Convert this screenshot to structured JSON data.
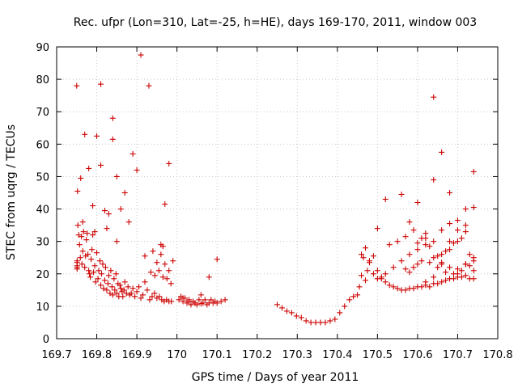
{
  "chart_data": {
    "type": "scatter",
    "title": "Rec. ufpr (Lon=310, Lat=-25, h=HE), days 169-170, 2011, window 003",
    "xlabel": "GPS time / Days of year 2011",
    "ylabel": "STEC from uqrg / TECUs",
    "xlim": [
      169.7,
      170.8
    ],
    "ylim": [
      0,
      90
    ],
    "xticks": [
      "169.7",
      "169.8",
      "169.9",
      "170",
      "170.1",
      "170.2",
      "170.3",
      "170.4",
      "170.5",
      "170.6",
      "170.7",
      "170.8"
    ],
    "yticks": [
      "0",
      "10",
      "20",
      "30",
      "40",
      "50",
      "60",
      "70",
      "80",
      "90"
    ],
    "grid": true,
    "legend": "none",
    "marker": "plus",
    "color": "#cc0000",
    "series": [
      {
        "x": [
          169.751,
          169.751,
          169.751,
          169.751,
          169.751,
          169.752,
          169.753,
          169.755,
          169.757,
          169.759,
          169.762,
          169.763,
          169.765,
          169.767,
          169.77,
          169.772,
          169.774,
          169.776,
          169.778,
          169.78,
          169.782,
          169.784,
          169.786,
          169.788,
          169.79,
          169.792,
          169.795,
          169.797,
          169.8,
          169.803,
          169.805,
          169.808,
          169.81,
          169.812,
          169.815,
          169.817,
          169.82,
          169.822,
          169.825,
          169.828,
          169.83,
          169.833,
          169.835,
          169.838,
          169.84,
          169.843,
          169.845,
          169.848,
          169.85,
          169.853,
          169.855,
          169.858,
          169.86,
          169.863,
          169.865,
          169.868,
          169.87,
          169.874,
          169.878,
          169.882,
          169.886,
          169.89,
          169.895,
          169.9,
          169.905,
          169.91,
          169.915,
          169.92,
          169.926,
          169.932,
          169.938,
          169.944,
          169.95,
          169.956,
          169.962,
          169.968,
          169.974,
          169.98,
          169.986,
          169.8,
          169.87,
          169.84,
          169.77,
          169.81,
          169.91,
          169.75,
          169.76,
          169.79,
          169.82,
          169.83,
          169.86,
          169.89,
          169.9,
          169.94,
          169.96,
          169.97,
          169.98,
          169.99,
          169.85,
          169.88,
          169.93,
          169.95,
          169.92,
          169.935,
          169.945,
          169.955,
          169.965,
          169.975,
          169.985,
          169.78,
          169.81,
          169.84,
          169.765,
          169.795,
          169.825,
          169.85,
          169.96,
          169.965,
          169.97,
          169.98
        ],
        "y": [
          23.5,
          24.0,
          22.5,
          22.0,
          21.5,
          45.5,
          35.0,
          32.0,
          29.0,
          25.0,
          31.5,
          23.0,
          27.0,
          33.0,
          22.0,
          25.5,
          30.5,
          32.5,
          26.0,
          21.0,
          20.0,
          19.0,
          24.5,
          27.5,
          32.0,
          20.5,
          22.5,
          17.5,
          26.5,
          18.5,
          21.0,
          24.0,
          16.5,
          20.0,
          23.0,
          15.5,
          18.0,
          22.0,
          15.0,
          17.0,
          19.5,
          14.0,
          21.0,
          16.0,
          13.5,
          18.5,
          15.0,
          20.0,
          14.0,
          17.0,
          13.0,
          16.5,
          15.5,
          14.5,
          13.0,
          15.0,
          17.5,
          14.0,
          16.0,
          13.5,
          14.0,
          15.5,
          13.0,
          14.5,
          16.0,
          12.5,
          13.5,
          17.5,
          15.0,
          12.0,
          13.0,
          14.0,
          12.5,
          13.0,
          12.0,
          11.5,
          12.0,
          11.5,
          11.5,
          62.5,
          45.0,
          68.0,
          63.0,
          78.5,
          87.5,
          78.0,
          49.5,
          41.0,
          39.5,
          38.5,
          40.0,
          57.0,
          52.0,
          27.0,
          29.0,
          41.5,
          54.0,
          24.0,
          50.0,
          36.0,
          78.0,
          23.5,
          25.5,
          20.5,
          19.5,
          21.0,
          19.0,
          18.5,
          17.0,
          52.5,
          53.5,
          61.5,
          36.0,
          33.0,
          34.0,
          30.0,
          26.0,
          28.5,
          23.0,
          21.0
        ]
      },
      {
        "x": [
          170.005,
          170.01,
          170.015,
          170.02,
          170.025,
          170.03,
          170.035,
          170.04,
          170.045,
          170.05,
          170.055,
          170.06,
          170.065,
          170.07,
          170.075,
          170.08,
          170.085,
          170.09,
          170.095,
          170.1,
          170.11,
          170.12,
          170.015,
          170.03,
          170.045,
          170.06,
          170.08,
          170.1
        ],
        "y": [
          12.0,
          13.0,
          11.5,
          12.5,
          11.0,
          12.0,
          10.5,
          11.5,
          11.0,
          10.5,
          12.0,
          13.5,
          11.0,
          12.0,
          10.5,
          11.0,
          12.0,
          11.0,
          11.5,
          11.0,
          11.5,
          12.0,
          12.5,
          11.5,
          11.0,
          10.8,
          19.0,
          24.5
        ]
      },
      {
        "x": [
          170.25,
          170.262,
          170.274,
          170.286,
          170.298,
          170.31,
          170.322,
          170.334,
          170.346,
          170.358,
          170.37,
          170.382,
          170.394,
          170.406,
          170.418,
          170.43
        ],
        "y": [
          10.5,
          9.5,
          8.5,
          8.0,
          7.0,
          6.5,
          5.5,
          5.0,
          5.0,
          5.0,
          5.0,
          5.5,
          6.0,
          8.0,
          10.0,
          12.0
        ]
      },
      {
        "x": [
          170.44,
          170.45,
          170.455,
          170.46,
          170.465,
          170.47,
          170.475,
          170.48,
          170.49,
          170.5,
          170.51,
          170.52,
          170.53,
          170.54,
          170.55,
          170.56,
          170.57,
          170.58,
          170.59,
          170.6,
          170.61,
          170.62,
          170.63,
          170.64,
          170.65,
          170.66,
          170.67,
          170.68,
          170.69,
          170.7,
          170.71,
          170.72,
          170.73,
          170.74,
          170.46,
          170.47,
          170.48,
          170.5,
          170.52,
          170.54,
          170.56,
          170.58,
          170.6,
          170.62,
          170.64,
          170.66,
          170.68,
          170.7,
          170.72,
          170.74,
          170.49,
          170.51,
          170.53,
          170.55,
          170.57,
          170.59,
          170.61,
          170.63,
          170.65,
          170.67,
          170.69,
          170.71,
          170.73,
          170.5,
          170.52,
          170.56,
          170.58,
          170.6,
          170.62,
          170.64,
          170.66,
          170.68,
          170.7,
          170.72,
          170.74,
          170.57,
          170.59,
          170.61,
          170.63,
          170.65,
          170.67,
          170.69,
          170.71,
          170.73,
          170.58,
          170.6,
          170.62,
          170.64,
          170.66,
          170.68,
          170.7,
          170.72,
          170.74,
          170.6,
          170.62,
          170.64,
          170.66,
          170.68,
          170.7,
          170.72,
          170.74,
          170.64,
          170.66,
          170.68,
          170.7,
          170.72,
          170.74
        ],
        "y": [
          13.0,
          13.5,
          16.0,
          19.5,
          25.0,
          18.0,
          21.0,
          23.5,
          20.0,
          18.5,
          19.0,
          17.5,
          16.5,
          16.0,
          15.5,
          15.0,
          15.0,
          15.5,
          15.5,
          16.0,
          16.0,
          16.5,
          16.0,
          17.0,
          17.0,
          17.5,
          18.0,
          18.5,
          18.5,
          19.0,
          19.0,
          19.5,
          18.5,
          18.5,
          26.0,
          28.0,
          24.0,
          21.0,
          20.0,
          22.0,
          24.0,
          26.0,
          27.5,
          29.0,
          25.0,
          23.5,
          22.0,
          21.5,
          23.0,
          24.0,
          25.5,
          18.5,
          29.0,
          30.0,
          31.5,
          33.5,
          31.0,
          28.5,
          25.5,
          27.0,
          29.5,
          31.0,
          26.0,
          34.0,
          43.0,
          44.5,
          36.0,
          42.0,
          32.5,
          30.0,
          26.0,
          27.5,
          30.0,
          33.0,
          25.0,
          21.5,
          22.0,
          24.0,
          23.5,
          22.0,
          20.5,
          20.0,
          21.0,
          22.5,
          20.5,
          23.0,
          17.5,
          19.0,
          23.0,
          30.0,
          20.0,
          23.0,
          21.0,
          29.5,
          31.0,
          74.5,
          57.5,
          45.0,
          36.5,
          35.0,
          40.5,
          49.0,
          33.5,
          35.5,
          33.5,
          40.0,
          51.5
        ],
        "note_x": []
      }
    ]
  }
}
